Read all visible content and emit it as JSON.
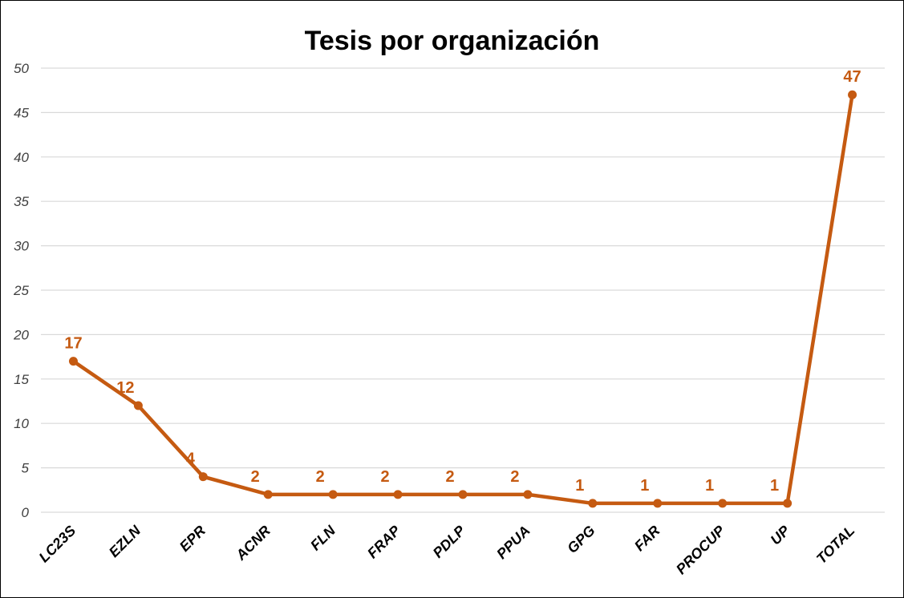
{
  "chart_data": {
    "type": "line",
    "title": "Tesis por organización",
    "xlabel": "",
    "ylabel": "",
    "categories": [
      "LC23S",
      "EZLN",
      "EPR",
      "ACNR",
      "FLN",
      "FRAP",
      "PDLP",
      "PPUA",
      "GPG",
      "FAR",
      "PROCUP",
      "UP",
      "TOTAL"
    ],
    "series": [
      {
        "values": [
          17,
          12,
          4,
          2,
          2,
          2,
          2,
          2,
          1,
          1,
          1,
          1,
          47
        ]
      }
    ],
    "data_labels": [
      "17",
      "12",
      "4",
      "2",
      "2",
      "2",
      "2",
      "2",
      "1",
      "1",
      "1",
      "1",
      "47"
    ],
    "ylim": [
      0,
      50
    ],
    "yticks": [
      "0",
      "5",
      "10",
      "15",
      "20",
      "25",
      "30",
      "35",
      "40",
      "45",
      "50"
    ],
    "grid": true,
    "legend": "none",
    "colors": {
      "line": "#C55A11",
      "grid": "#D9D9D9",
      "border": "#000000"
    }
  }
}
